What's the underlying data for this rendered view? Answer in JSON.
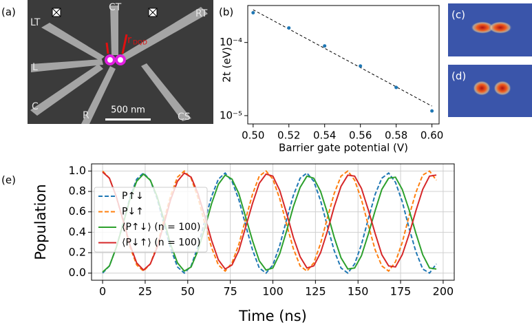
{
  "chart_data": [
    {
      "type": "scatter",
      "panel_label": "(b)",
      "x_label": "Barrier gate potential (V)",
      "y_label": "2t (eV)",
      "x": [
        0.5,
        0.52,
        0.54,
        0.56,
        0.58,
        0.6
      ],
      "values": [
        0.000255,
        0.000158,
        8.97e-05,
        4.77e-05,
        2.43e-05,
        1.16e-05
      ],
      "color": "#1f77b4",
      "fit": {
        "x": [
          0.5,
          0.6
        ],
        "values": [
          0.00028,
          1.35e-05
        ],
        "color": "#000000"
      },
      "xlim": [
        0.497,
        0.604
      ],
      "ylim": [
        7.7e-06,
        0.00032
      ],
      "log_y": true,
      "xticks": [
        {
          "value": 0.5,
          "label": "0.50"
        },
        0.52,
        0.54,
        0.56,
        0.58,
        {
          "value": 0.6,
          "label": "0.60"
        }
      ],
      "yticks": [
        {
          "value": 1e-05,
          "label": "10⁻⁵"
        },
        {
          "value": 0.0001,
          "label": "10⁻⁴"
        }
      ]
    },
    {
      "type": "line",
      "panel_label": "(e)",
      "x_label": "Time (ns)",
      "y_label": "Population",
      "grid": true,
      "legend": "upper left",
      "x": [
        0,
        4,
        8,
        12,
        16,
        20,
        24,
        28,
        32,
        36,
        40,
        44,
        48,
        52,
        56,
        60,
        64,
        68,
        72,
        76,
        80,
        84,
        88,
        92,
        96,
        100,
        104,
        108,
        112,
        116,
        120,
        124,
        128,
        132,
        136,
        140,
        144,
        148,
        152,
        156,
        160,
        164,
        168,
        172,
        176,
        180,
        184,
        188,
        192,
        196
      ],
      "series": [
        {
          "name": "P↑↓",
          "color": "#1f77b4",
          "dashed": true,
          "values": [
            0,
            0.07,
            0.25,
            0.49,
            0.74,
            0.92,
            0.98,
            0.91,
            0.73,
            0.48,
            0.24,
            0.06,
            0,
            0.07,
            0.26,
            0.51,
            0.75,
            0.92,
            0.98,
            0.9,
            0.72,
            0.47,
            0.23,
            0.05,
            0,
            0.08,
            0.27,
            0.52,
            0.76,
            0.93,
            0.98,
            0.9,
            0.71,
            0.46,
            0.22,
            0.05,
            0,
            0.09,
            0.28,
            0.53,
            0.77,
            0.93,
            0.98,
            0.89,
            0.7,
            0.44,
            0.21,
            0.04,
            0,
            0.09
          ]
        },
        {
          "name": "P↓↑",
          "color": "#ff7f0e",
          "dashed": true,
          "values": [
            1,
            0.93,
            0.75,
            0.51,
            0.26,
            0.08,
            0.02,
            0.09,
            0.27,
            0.52,
            0.76,
            0.94,
            1,
            0.93,
            0.74,
            0.49,
            0.25,
            0.08,
            0.02,
            0.1,
            0.28,
            0.53,
            0.77,
            0.95,
            1,
            0.92,
            0.73,
            0.48,
            0.24,
            0.07,
            0.02,
            0.1,
            0.29,
            0.54,
            0.78,
            0.95,
            1,
            0.91,
            0.72,
            0.47,
            0.23,
            0.07,
            0.02,
            0.11,
            0.3,
            0.56,
            0.79,
            0.96,
            1,
            0.91
          ]
        },
        {
          "name": "⟨P↑↓⟩ (n = 100)",
          "color": "#2ca02c",
          "dashed": false,
          "values": [
            0.01,
            0.07,
            0.25,
            0.48,
            0.72,
            0.9,
            0.97,
            0.91,
            0.75,
            0.52,
            0.28,
            0.1,
            0.02,
            0.06,
            0.22,
            0.44,
            0.68,
            0.87,
            0.96,
            0.92,
            0.78,
            0.55,
            0.32,
            0.12,
            0.03,
            0.05,
            0.19,
            0.41,
            0.65,
            0.84,
            0.95,
            0.93,
            0.8,
            0.59,
            0.35,
            0.15,
            0.04,
            0.05,
            0.17,
            0.38,
            0.61,
            0.82,
            0.93,
            0.94,
            0.82,
            0.62,
            0.39,
            0.18,
            0.05,
            0.04
          ]
        },
        {
          "name": "⟨P↓↑⟩ (n = 100)",
          "color": "#d62728",
          "dashed": false,
          "values": [
            0.99,
            0.93,
            0.75,
            0.52,
            0.28,
            0.1,
            0.03,
            0.09,
            0.25,
            0.48,
            0.72,
            0.9,
            0.98,
            0.94,
            0.78,
            0.56,
            0.32,
            0.13,
            0.04,
            0.08,
            0.22,
            0.45,
            0.68,
            0.88,
            0.97,
            0.95,
            0.81,
            0.59,
            0.35,
            0.16,
            0.05,
            0.07,
            0.2,
            0.41,
            0.65,
            0.85,
            0.96,
            0.95,
            0.83,
            0.62,
            0.39,
            0.18,
            0.07,
            0.06,
            0.18,
            0.38,
            0.61,
            0.82,
            0.95,
            0.96
          ]
        }
      ],
      "xlim": [
        -6.5,
        206.5
      ],
      "ylim": [
        -0.07,
        1.07
      ],
      "xticks": [
        0,
        25,
        50,
        75,
        100,
        125,
        150,
        175,
        200
      ],
      "yticks": [
        {
          "value": 0,
          "label": "0.0"
        },
        0.2,
        0.4,
        0.6,
        0.8,
        {
          "value": 1,
          "label": "1.0"
        }
      ]
    }
  ],
  "image_panels": {
    "a": {
      "label": "(a)",
      "gates": [
        "LT",
        "CT",
        "RT",
        "L",
        "C",
        "R",
        "CS"
      ],
      "scale_bar": "500 nm",
      "distance": "r",
      "distance_subscript": "DQD"
    },
    "c": {
      "label": "(c)"
    },
    "d": {
      "label": "(d)"
    }
  }
}
